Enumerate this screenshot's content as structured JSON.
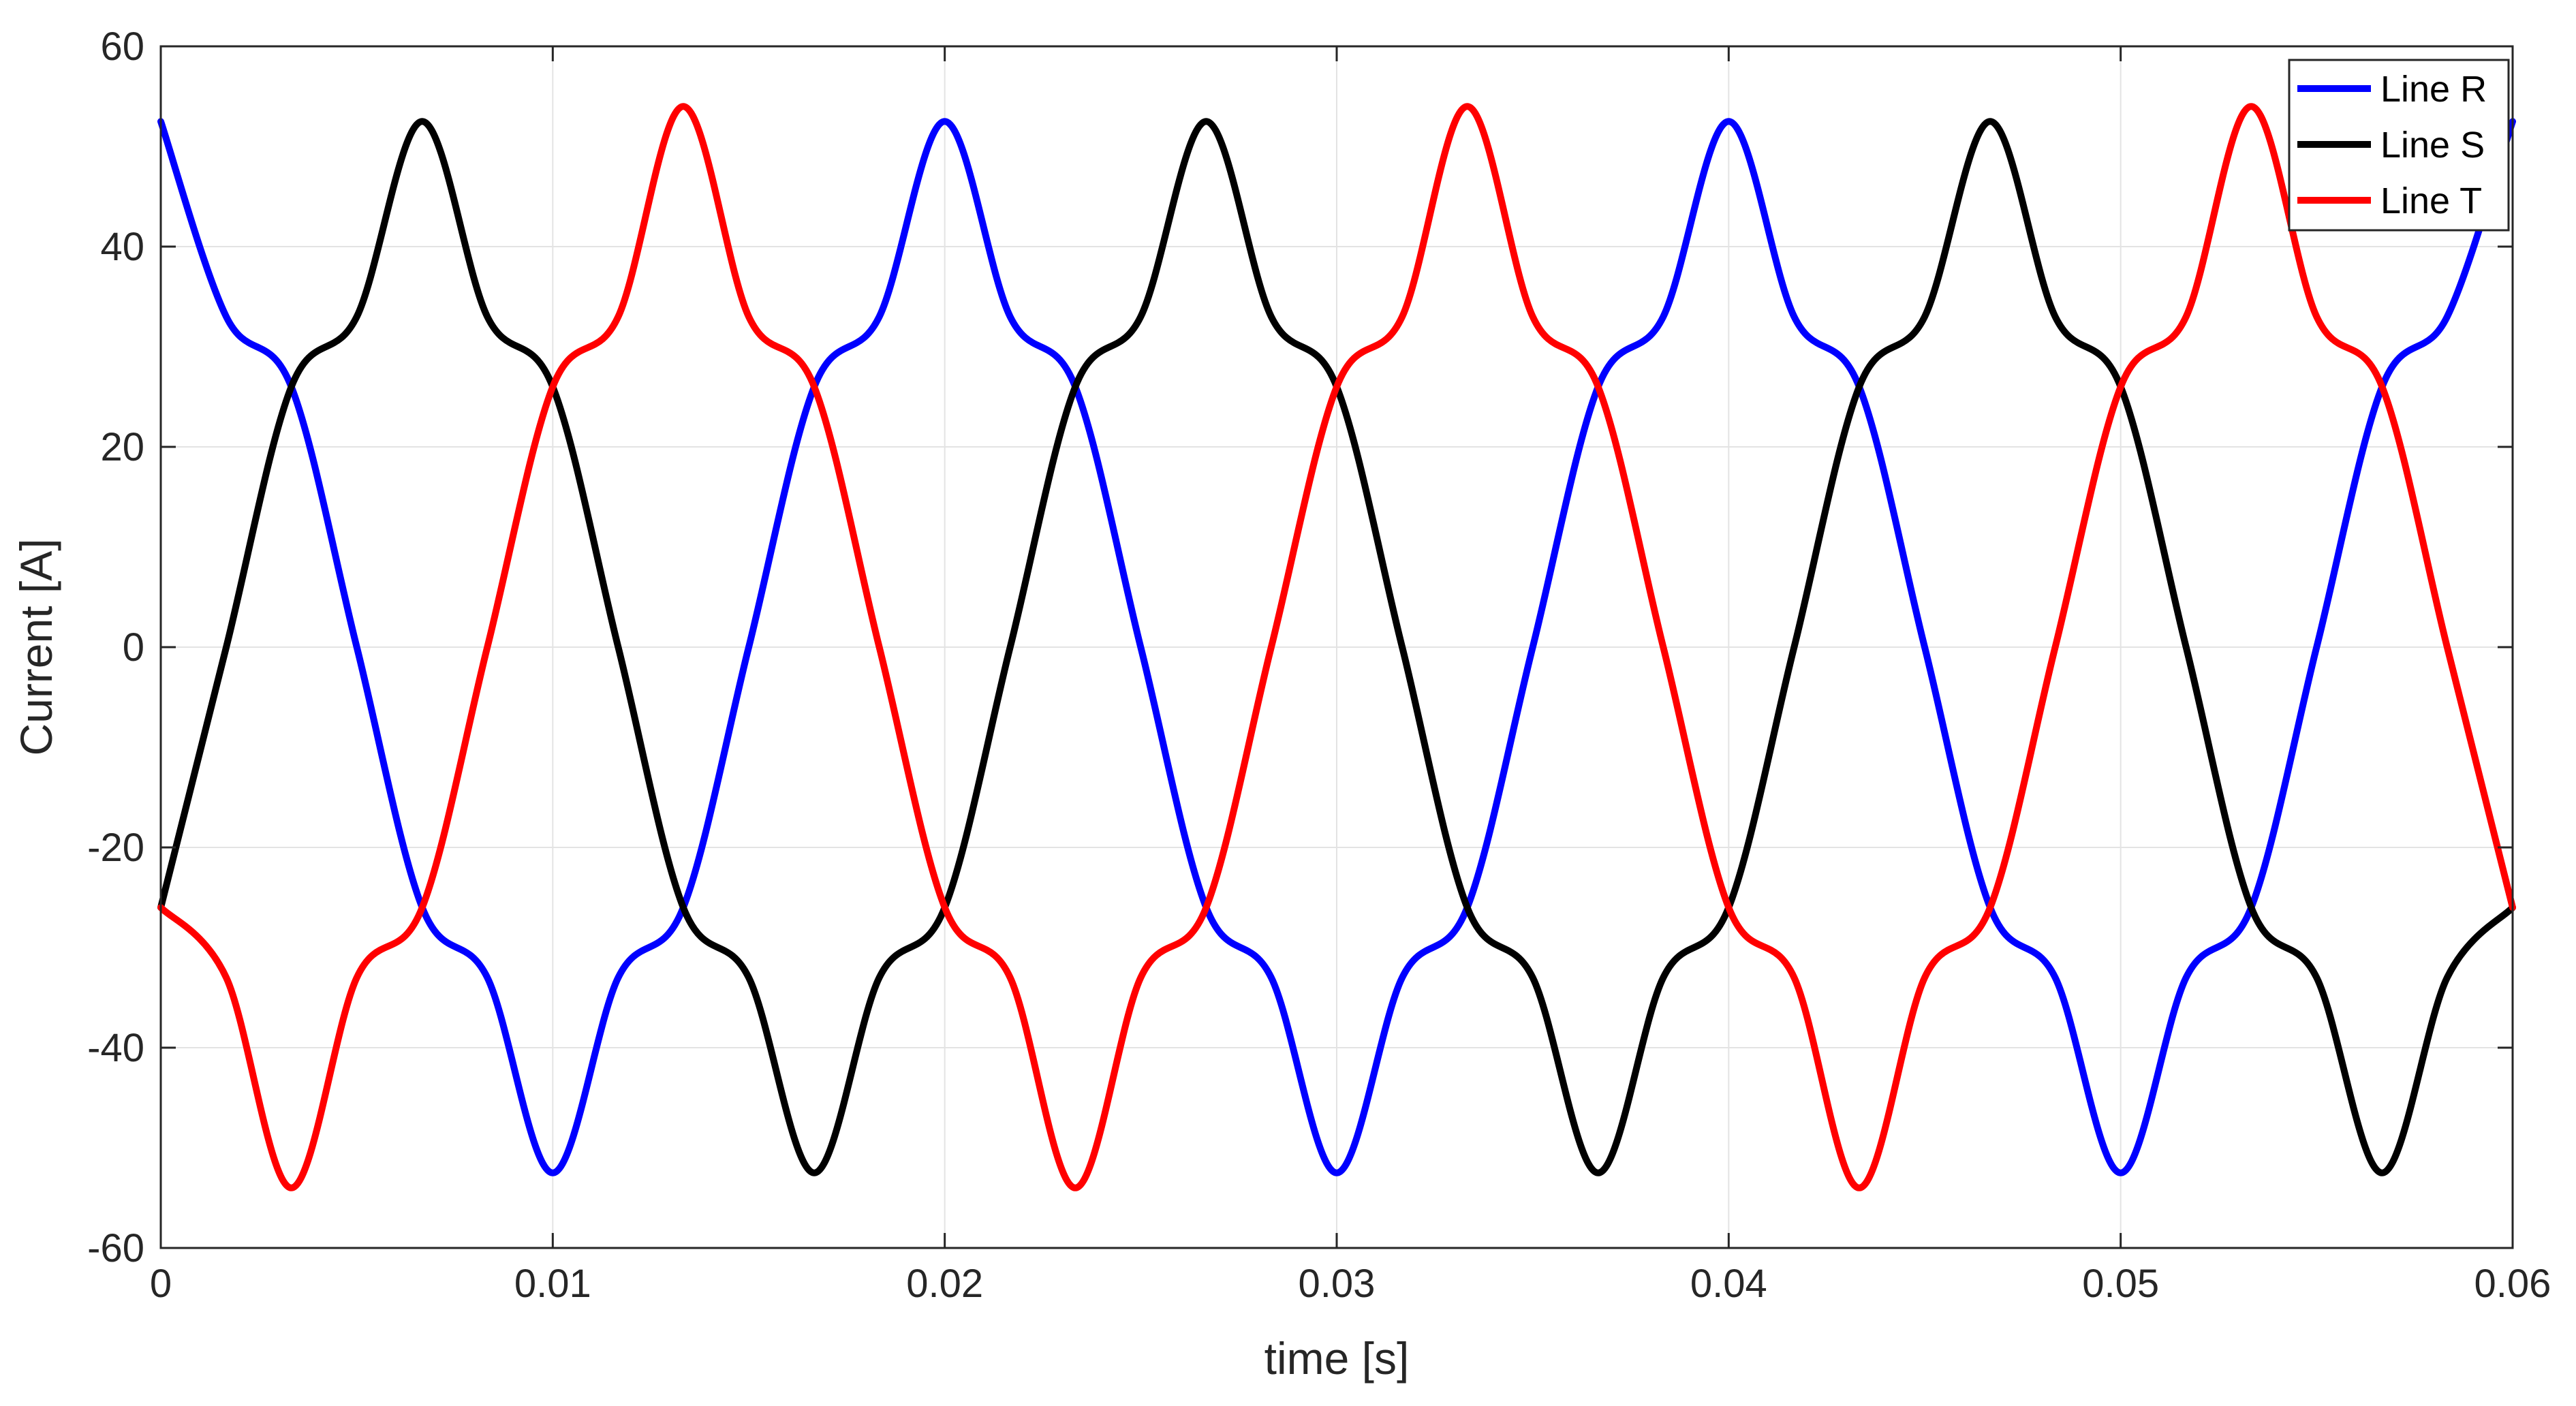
{
  "chart_data": {
    "type": "line",
    "title": "",
    "xlabel": "time [s]",
    "ylabel": "Current [A]",
    "xlim": [
      0,
      0.06
    ],
    "ylim": [
      -60,
      60
    ],
    "grid": true,
    "legend_position": "top-right",
    "x_ticks": [
      0,
      0.01,
      0.02,
      0.03,
      0.04,
      0.05,
      0.06
    ],
    "x_tick_labels": [
      "0",
      "0.01",
      "0.02",
      "0.03",
      "0.04",
      "0.05",
      "0.06"
    ],
    "y_ticks": [
      60,
      40,
      20,
      0,
      -20,
      -40,
      -60
    ],
    "y_tick_labels": [
      "60",
      "40",
      "20",
      "0",
      "-20",
      "-40",
      "-60"
    ],
    "x": [
      0,
      0.00167,
      0.00333,
      0.005,
      0.00667,
      0.00833,
      0.01,
      0.01167,
      0.01333,
      0.015,
      0.01667,
      0.01833,
      0.02,
      0.02167,
      0.02333,
      0.025,
      0.02667,
      0.02833,
      0.03,
      0.03167,
      0.03333,
      0.035,
      0.03667,
      0.03833,
      0.04,
      0.04167,
      0.04333,
      0.045,
      0.04667,
      0.04833,
      0.05,
      0.05167,
      0.05333,
      0.055,
      0.05667,
      0.05833,
      0.06
    ],
    "series": [
      {
        "name": "Line R",
        "color": "#0000ff",
        "values": [
          52.5,
          33,
          26,
          0,
          -26,
          -33,
          -52.5,
          -33,
          -26,
          0,
          26,
          33,
          52.5,
          33,
          26,
          0,
          -26,
          -33,
          -52.5,
          -33,
          -26,
          0,
          26,
          33,
          52.5,
          33,
          26,
          0,
          -26,
          -33,
          -52.5,
          -33,
          -26,
          0,
          26,
          33,
          52.5
        ]
      },
      {
        "name": "Line S",
        "color": "#000000",
        "values": [
          -26,
          0,
          26,
          33,
          52.5,
          33,
          26,
          0,
          -26,
          -33,
          -52.5,
          -33,
          -26,
          0,
          26,
          33,
          52.5,
          33,
          26,
          0,
          -26,
          -33,
          -52.5,
          -33,
          -26,
          0,
          26,
          33,
          52.5,
          33,
          26,
          0,
          -26,
          -33,
          -52.5,
          -33,
          -26
        ]
      },
      {
        "name": "Line T",
        "color": "#ff0000",
        "values": [
          -26,
          -33,
          -54,
          -33,
          -26,
          0,
          26,
          33,
          54,
          33,
          26,
          0,
          -26,
          -33,
          -54,
          -33,
          -26,
          0,
          26,
          33,
          54,
          33,
          26,
          0,
          -26,
          -33,
          -54,
          -33,
          -26,
          0,
          26,
          33,
          54,
          33,
          26,
          0,
          -26
        ]
      }
    ]
  }
}
